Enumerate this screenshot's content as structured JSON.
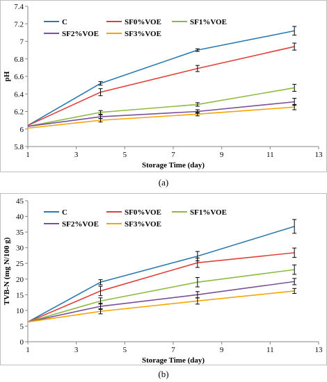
{
  "colors": {
    "C": "#2a7ab0",
    "SF0%VOE": "#e0403c",
    "SF1%VOE": "#8dbb40",
    "SF2%VOE": "#7a4e9c",
    "SF3%VOE": "#f6a400"
  },
  "chart_data": [
    {
      "type": "line",
      "caption": "(a)",
      "xlabel": "Storage Time (day)",
      "ylabel": "pH",
      "xlim": [
        1,
        13
      ],
      "ylim": [
        5.8,
        7.4
      ],
      "xticks": [
        1,
        3,
        5,
        7,
        9,
        11,
        13
      ],
      "xtick_labels": [
        "1",
        "3",
        "5",
        "7",
        "9",
        "11",
        "13"
      ],
      "yticks": [
        5.8,
        6,
        6.2,
        6.4,
        6.6,
        6.8,
        7,
        7.2,
        7.4
      ],
      "ytick_labels": [
        "5.8",
        "6",
        "6.2",
        "6.4",
        "6.6",
        "6.8",
        "7",
        "7.2",
        "7.4"
      ],
      "grid": false,
      "legend": "top",
      "x": [
        1,
        4,
        8,
        12
      ],
      "series": [
        {
          "name": "C",
          "values": [
            6.04,
            6.52,
            6.9,
            7.12
          ],
          "errors": [
            0.01,
            0.02,
            0.015,
            0.05
          ]
        },
        {
          "name": "SF0%VOE",
          "values": [
            6.04,
            6.42,
            6.69,
            6.94
          ],
          "errors": [
            0.01,
            0.04,
            0.035,
            0.04
          ]
        },
        {
          "name": "SF1%VOE",
          "values": [
            6.03,
            6.19,
            6.28,
            6.47
          ],
          "errors": [
            0.01,
            0.02,
            0.02,
            0.04
          ]
        },
        {
          "name": "SF2%VOE",
          "values": [
            6.03,
            6.14,
            6.2,
            6.31
          ],
          "errors": [
            0.01,
            0.02,
            0.02,
            0.04
          ]
        },
        {
          "name": "SF3%VOE",
          "values": [
            6.01,
            6.1,
            6.17,
            6.25
          ],
          "errors": [
            0.01,
            0.02,
            0.02,
            0.03
          ]
        }
      ]
    },
    {
      "type": "line",
      "caption": "(b)",
      "xlabel": "Storage Time (day)",
      "ylabel": "TVB-N (mg N/100 g)",
      "xlim": [
        1,
        13
      ],
      "ylim": [
        0,
        45
      ],
      "xticks": [
        1,
        3,
        5,
        7,
        9,
        11,
        13
      ],
      "xtick_labels": [
        "1",
        "3",
        "5",
        "7",
        "9",
        "11",
        "13"
      ],
      "yticks": [
        0,
        5,
        10,
        15,
        20,
        25,
        30,
        35,
        40,
        45
      ],
      "ytick_labels": [
        "0",
        "5",
        "10",
        "15",
        "20",
        "25",
        "30",
        "35",
        "40",
        "45"
      ],
      "grid": false,
      "legend": "top",
      "x": [
        1,
        4,
        8,
        12
      ],
      "series": [
        {
          "name": "C",
          "values": [
            6.3,
            19.0,
            27.3,
            36.8
          ],
          "errors": [
            0.3,
            0.8,
            1.5,
            2.2
          ]
        },
        {
          "name": "SF0%VOE",
          "values": [
            6.3,
            16.2,
            25.2,
            28.4
          ],
          "errors": [
            0.3,
            1.5,
            1.5,
            1.5
          ]
        },
        {
          "name": "SF1%VOE",
          "values": [
            6.3,
            13.0,
            19.0,
            23.0
          ],
          "errors": [
            0.3,
            1.0,
            1.5,
            1.5
          ]
        },
        {
          "name": "SF2%VOE",
          "values": [
            6.3,
            11.3,
            15.0,
            19.2
          ],
          "errors": [
            0.3,
            1.0,
            1.0,
            1.0
          ]
        },
        {
          "name": "SF3%VOE",
          "values": [
            6.3,
            9.7,
            13.0,
            16.2
          ],
          "errors": [
            0.3,
            0.8,
            1.0,
            0.8
          ]
        }
      ]
    }
  ]
}
